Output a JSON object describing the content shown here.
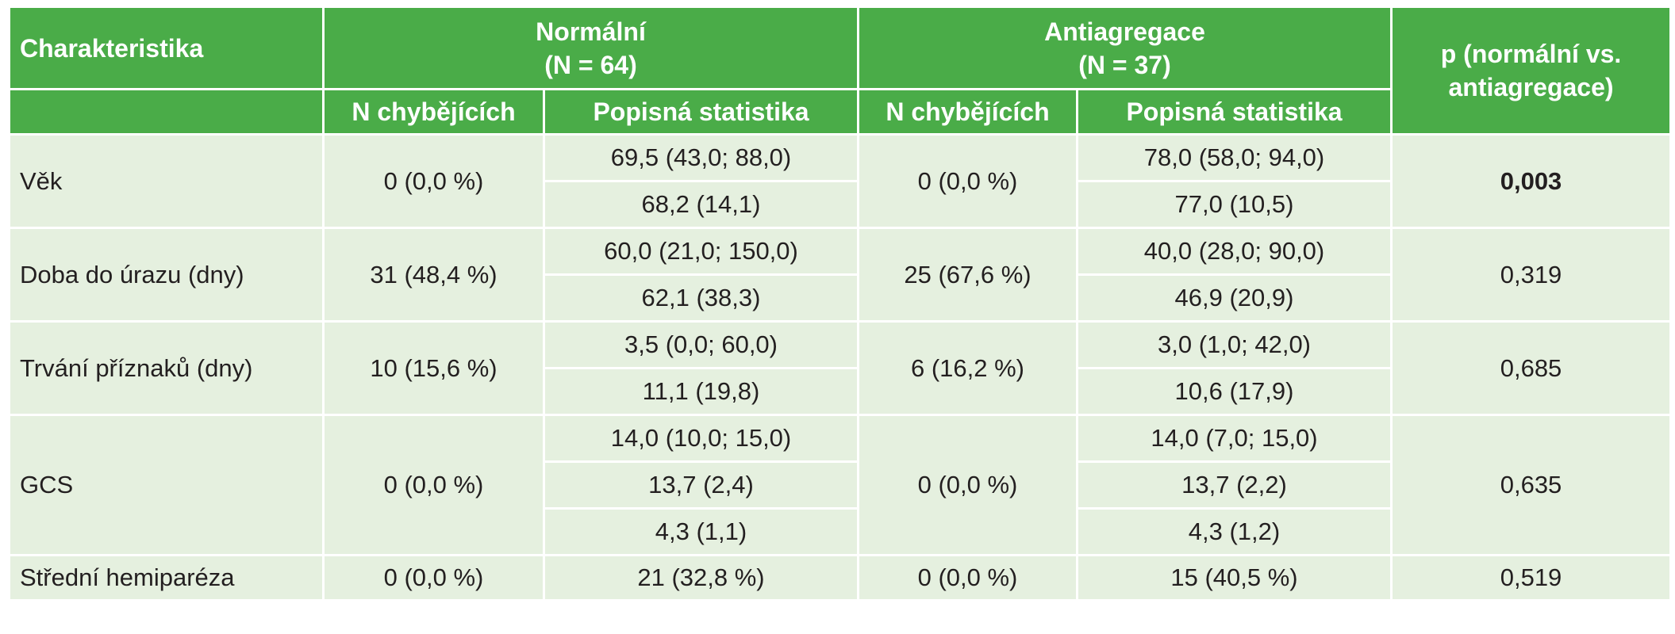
{
  "header": {
    "characteristic": "Charakteristika",
    "group1_name": "Normální",
    "group1_n": "(N = 64)",
    "group2_name": "Antiagregace",
    "group2_n": "(N = 37)",
    "p_line1": "p (normální vs.",
    "p_line2": "antiagregace)",
    "sub_missing_1": "N chybějících",
    "sub_stats_1": "Popisná statistika",
    "sub_missing_2": "N chybějících",
    "sub_stats_2": "Popisná statistika"
  },
  "rows": [
    {
      "label": "Věk",
      "missing1": "0 (0,0 %)",
      "stats1": [
        "69,5 (43,0; 88,0)",
        "68,2 (14,1)"
      ],
      "missing2": "0 (0,0 %)",
      "stats2": [
        "78,0 (58,0; 94,0)",
        "77,0 (10,5)"
      ],
      "p": "0,003"
    },
    {
      "label": "Doba do úrazu (dny)",
      "missing1": "31 (48,4 %)",
      "stats1": [
        "60,0 (21,0; 150,0)",
        "62,1 (38,3)"
      ],
      "missing2": "25 (67,6 %)",
      "stats2": [
        "40,0 (28,0; 90,0)",
        "46,9 (20,9)"
      ],
      "p": "0,319"
    },
    {
      "label": "Trvání příznaků (dny)",
      "missing1": "10 (15,6 %)",
      "stats1": [
        "3,5 (0,0; 60,0)",
        "11,1 (19,8)"
      ],
      "missing2": "6 (16,2 %)",
      "stats2": [
        "3,0 (1,0; 42,0)",
        "10,6 (17,9)"
      ],
      "p": "0,685"
    },
    {
      "label": "GCS",
      "missing1": "0 (0,0 %)",
      "stats1": [
        "14,0 (10,0; 15,0)",
        "13,7 (2,4)",
        "4,3 (1,1)"
      ],
      "missing2": "0 (0,0 %)",
      "stats2": [
        "14,0 (7,0; 15,0)",
        "13,7 (2,2)",
        "4,3 (1,2)"
      ],
      "p": "0,635"
    },
    {
      "label": "Střední hemiparéza",
      "missing1": "0 (0,0 %)",
      "stats1": [
        "21 (32,8 %)"
      ],
      "missing2": "0 (0,0 %)",
      "stats2": [
        "15 (40,5 %)"
      ],
      "p": "0,519"
    }
  ],
  "colors": {
    "header_bg": "#4aac48",
    "body_bg": "#e5f0df",
    "border": "#ffffff"
  }
}
